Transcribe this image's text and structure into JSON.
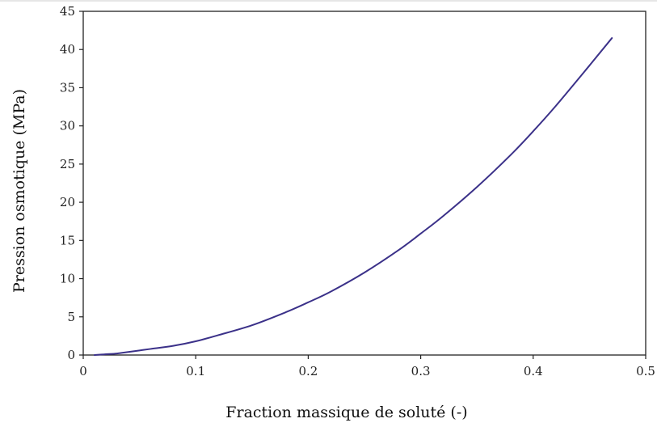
{
  "chart_data": {
    "type": "line",
    "title": "",
    "xlabel": "Fraction massique de soluté (-)",
    "ylabel": "Pression osmotique (MPa)",
    "xlim": [
      0,
      0.5
    ],
    "ylim": [
      0,
      45
    ],
    "x_ticks": [
      0,
      0.1,
      0.2,
      0.3,
      0.4,
      0.5
    ],
    "x_tick_labels": [
      "0",
      "0.1",
      "0.2",
      "0.3",
      "0.4",
      "0.5"
    ],
    "y_ticks": [
      0,
      5,
      10,
      15,
      20,
      25,
      30,
      35,
      40,
      45
    ],
    "y_tick_labels": [
      "0",
      "5",
      "10",
      "15",
      "20",
      "25",
      "30",
      "35",
      "40",
      "45"
    ],
    "grid": false,
    "legend": "none",
    "line_color": "#3b3189",
    "series": [
      {
        "x": [
          0.01,
          0.02,
          0.03,
          0.04,
          0.05,
          0.06,
          0.08,
          0.1,
          0.12,
          0.15,
          0.18,
          0.2,
          0.22,
          0.25,
          0.28,
          0.3,
          0.32,
          0.35,
          0.38,
          0.4,
          0.42,
          0.45,
          0.47
        ],
        "y": [
          0.0,
          0.1,
          0.2,
          0.4,
          0.6,
          0.8,
          1.2,
          1.8,
          2.6,
          3.9,
          5.6,
          6.9,
          8.3,
          10.8,
          13.7,
          15.9,
          18.2,
          22.0,
          26.2,
          29.3,
          32.6,
          37.9,
          41.5
        ]
      }
    ]
  }
}
